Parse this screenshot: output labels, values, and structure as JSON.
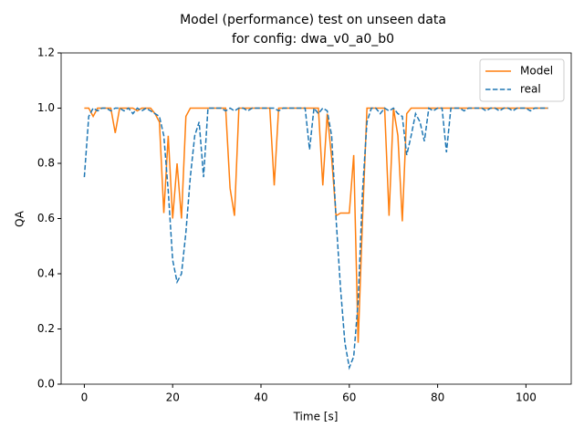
{
  "chart_data": {
    "type": "line",
    "title": [
      "Model (performance) test on unseen data",
      "for config: dwa_v0_a0_b0"
    ],
    "x_label": "Time [s]",
    "y_label": "QA",
    "x": [
      0,
      1,
      2,
      3,
      4,
      5,
      6,
      7,
      8,
      9,
      10,
      11,
      12,
      13,
      14,
      15,
      16,
      17,
      18,
      19,
      20,
      21,
      22,
      23,
      24,
      25,
      26,
      27,
      28,
      29,
      30,
      31,
      32,
      33,
      34,
      35,
      36,
      37,
      38,
      39,
      40,
      41,
      42,
      43,
      44,
      45,
      46,
      47,
      48,
      49,
      50,
      51,
      52,
      53,
      54,
      55,
      56,
      57,
      58,
      59,
      60,
      61,
      62,
      63,
      64,
      65,
      66,
      67,
      68,
      69,
      70,
      71,
      72,
      73,
      74,
      75,
      76,
      77,
      78,
      79,
      80,
      81,
      82,
      83,
      84,
      85,
      86,
      87,
      88,
      89,
      90,
      91,
      92,
      93,
      94,
      95,
      96,
      97,
      98,
      99,
      100,
      101,
      102,
      103,
      104,
      105
    ],
    "series": [
      {
        "name": "Model",
        "color": "#ff7f0e",
        "dash": false,
        "values": [
          1.0,
          1.0,
          0.97,
          1.0,
          1.0,
          1.0,
          1.0,
          0.91,
          1.0,
          1.0,
          1.0,
          1.0,
          0.99,
          1.0,
          1.0,
          1.0,
          0.98,
          0.95,
          0.62,
          0.9,
          0.6,
          0.8,
          0.6,
          0.97,
          1.0,
          1.0,
          1.0,
          1.0,
          1.0,
          1.0,
          1.0,
          1.0,
          1.0,
          0.71,
          0.61,
          1.0,
          1.0,
          1.0,
          1.0,
          1.0,
          1.0,
          1.0,
          1.0,
          0.72,
          1.0,
          1.0,
          1.0,
          1.0,
          1.0,
          1.0,
          1.0,
          1.0,
          1.0,
          1.0,
          0.72,
          0.98,
          0.82,
          0.61,
          0.62,
          0.62,
          0.62,
          0.83,
          0.15,
          0.6,
          1.0,
          1.0,
          1.0,
          1.0,
          1.0,
          0.61,
          1.0,
          0.9,
          0.59,
          0.98,
          1.0,
          1.0,
          1.0,
          1.0,
          1.0,
          1.0,
          1.0,
          1.0,
          1.0,
          1.0,
          1.0,
          1.0,
          1.0,
          1.0,
          1.0,
          1.0,
          1.0,
          1.0,
          1.0,
          1.0,
          1.0,
          1.0,
          1.0,
          1.0,
          1.0,
          1.0,
          1.0,
          1.0,
          1.0,
          1.0,
          1.0,
          1.0
        ]
      },
      {
        "name": "real",
        "color": "#1f77b4",
        "dash": true,
        "values": [
          0.75,
          0.97,
          1.0,
          0.99,
          1.0,
          1.0,
          0.99,
          1.0,
          1.0,
          0.99,
          1.0,
          0.98,
          1.0,
          0.99,
          1.0,
          0.99,
          0.98,
          0.97,
          0.9,
          0.7,
          0.45,
          0.37,
          0.4,
          0.55,
          0.75,
          0.9,
          0.95,
          0.75,
          1.0,
          1.0,
          1.0,
          1.0,
          0.99,
          1.0,
          0.99,
          1.0,
          1.0,
          0.99,
          1.0,
          1.0,
          1.0,
          1.0,
          1.0,
          1.0,
          0.99,
          1.0,
          1.0,
          1.0,
          1.0,
          1.0,
          1.0,
          0.85,
          1.0,
          0.98,
          1.0,
          0.99,
          0.9,
          0.6,
          0.35,
          0.15,
          0.06,
          0.1,
          0.3,
          0.7,
          0.95,
          1.0,
          1.0,
          0.98,
          1.0,
          0.99,
          1.0,
          0.98,
          0.97,
          0.83,
          0.9,
          0.98,
          0.95,
          0.88,
          1.0,
          0.99,
          1.0,
          1.0,
          0.84,
          1.0,
          1.0,
          1.0,
          0.99,
          1.0,
          1.0,
          1.0,
          1.0,
          0.99,
          1.0,
          1.0,
          0.99,
          1.0,
          1.0,
          0.99,
          1.0,
          1.0,
          1.0,
          0.99,
          1.0,
          1.0,
          1.0,
          1.0
        ]
      }
    ],
    "xlim": [
      -5.25,
      110.25
    ],
    "xticks": [
      0,
      20,
      40,
      60,
      80,
      100
    ],
    "ylim": [
      0,
      1.2
    ],
    "yticks": [
      {
        "value": 0,
        "label": "0.0"
      },
      0.2,
      0.4,
      0.6,
      0.8,
      {
        "value": 1,
        "label": "1.0"
      },
      1.2
    ],
    "grid": false,
    "legend": "upper right"
  }
}
